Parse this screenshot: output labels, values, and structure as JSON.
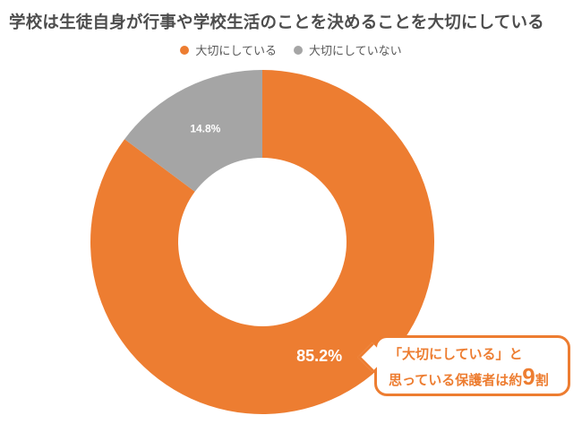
{
  "theme": {
    "accent_orange": "#ed7d31",
    "gray": "#a5a5a5",
    "title_color": "#4d4d4d",
    "legend_text_color": "#595959",
    "slice_label_color": "#ffffff",
    "background": "#ffffff"
  },
  "title": {
    "text": "学校は生徒自身が行事や学校生活のことを決めることを大切にしている"
  },
  "legend": {
    "items": [
      {
        "label": "大切にしている",
        "color": "#ed7d31"
      },
      {
        "label": "大切にしていない",
        "color": "#a5a5a5"
      }
    ]
  },
  "chart_data": {
    "type": "pie",
    "subtype": "donut",
    "title": "学校は生徒自身が行事や学校生活のことを決めることを大切にしている",
    "categories": [
      "大切にしている",
      "大切にしていない"
    ],
    "values": [
      85.2,
      14.8
    ],
    "unit": "%",
    "labels": [
      "85.2%",
      "14.8%"
    ],
    "colors": [
      "#ed7d31",
      "#a5a5a5"
    ],
    "legend_position": "top",
    "start_angle_deg": 0,
    "direction": "clockwise",
    "inner_radius_ratio": 0.49
  },
  "callout": {
    "line1": "「大切にしている」と",
    "line2_prefix": "思っている保護者は約",
    "line2_big": "9",
    "line2_suffix": "割"
  }
}
